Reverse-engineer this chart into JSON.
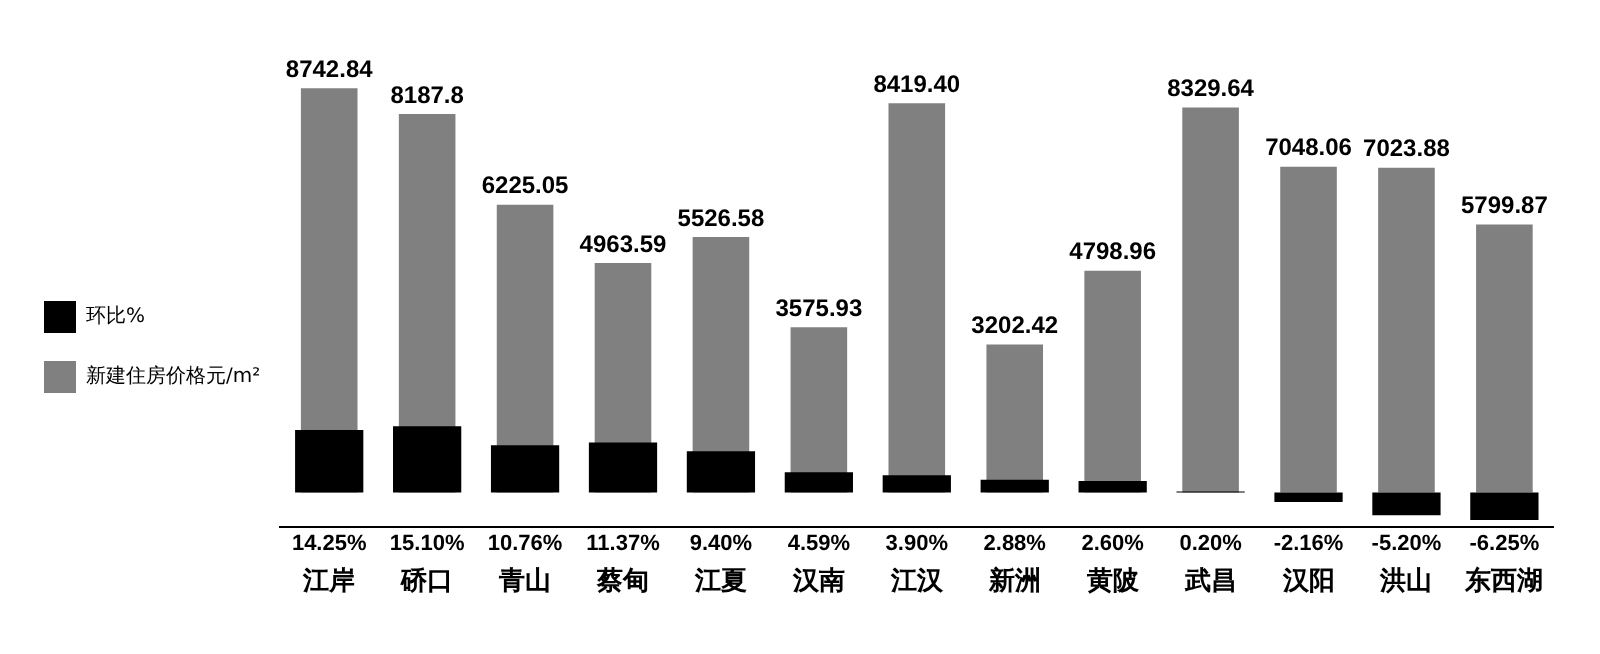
{
  "chart_data": {
    "type": "bar",
    "categories": [
      "江岸",
      "硚口",
      "青山",
      "蔡甸",
      "江夏",
      "汉南",
      "江汉",
      "新洲",
      "黄陂",
      "武昌",
      "汉阳",
      "洪山",
      "东西湖"
    ],
    "series": [
      {
        "name": "新建住房价格元/m²",
        "color": "#808080",
        "values": [
          8742.84,
          8187.8,
          6225.05,
          4963.59,
          5526.58,
          3575.93,
          8419.4,
          3202.42,
          4798.96,
          8329.64,
          7048.06,
          7023.88,
          5799.87
        ],
        "value_labels": [
          "8742.84",
          "8187.8",
          "6225.05",
          "4963.59",
          "5526.58",
          "3575.93",
          "8419.40",
          "3202.42",
          "4798.96",
          "8329.64",
          "7048.06",
          "7023.88",
          "5799.87"
        ]
      },
      {
        "name": "环比%",
        "color": "#000000",
        "axis": "y2",
        "values": [
          14.25,
          15.1,
          10.76,
          11.37,
          9.4,
          4.59,
          3.9,
          2.88,
          2.6,
          0.2,
          -2.16,
          -5.2,
          -6.25
        ],
        "value_labels": [
          "14.25%",
          "15.10%",
          "10.76%",
          "11.37%",
          "9.40%",
          "4.59%",
          "3.90%",
          "2.88%",
          "2.60%",
          "0.20%",
          "-2.16%",
          "-5.20%",
          "-6.25%"
        ]
      }
    ],
    "tick_labels": "x",
    "grid": false,
    "legend": "left"
  }
}
